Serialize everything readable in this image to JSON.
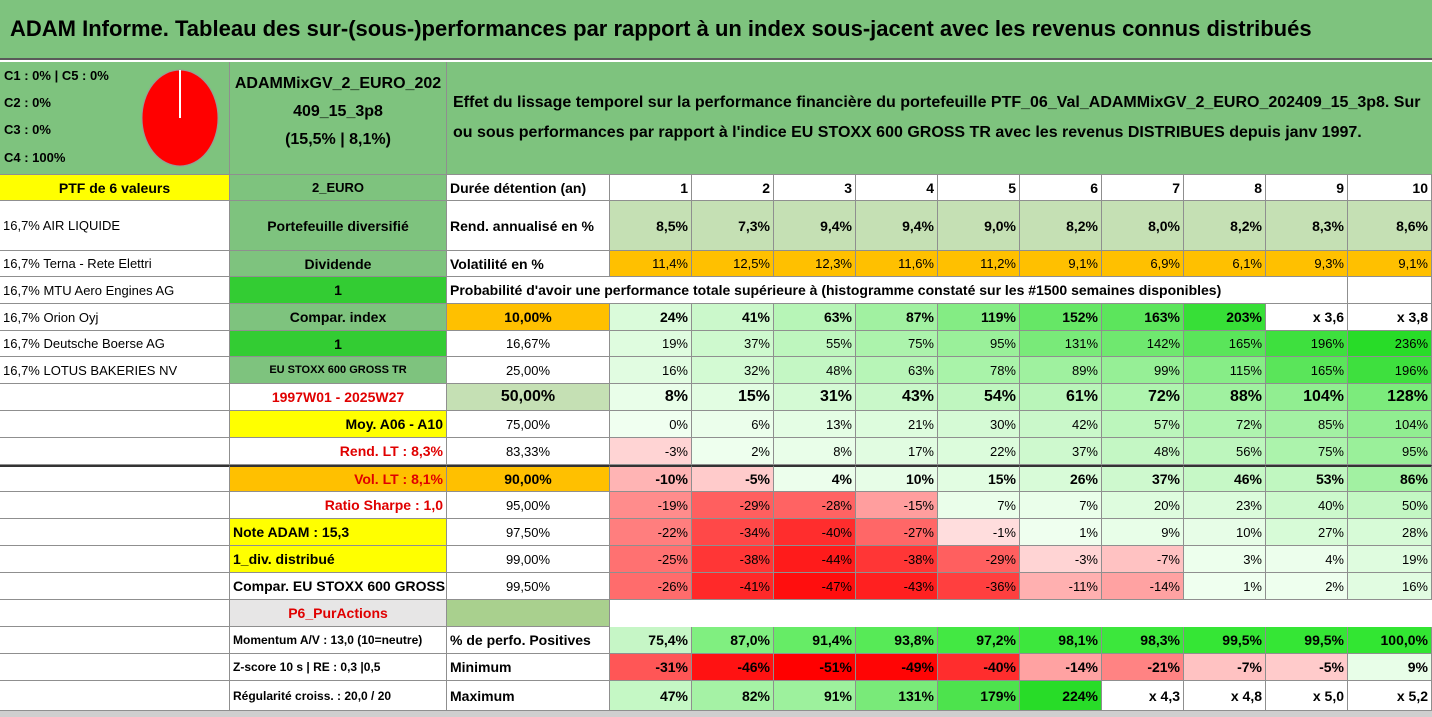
{
  "title": "ADAM Informe. Tableau des sur-(sous-)performances par rapport à un index sous-jacent avec les revenus connus distribués",
  "composition": [
    "C1 : 0% | C5 : 0%",
    "C2 : 0%",
    "C3 : 0%",
    "C4 : 100%"
  ],
  "portfolio_name": [
    "ADAMMixGV_2_EURO_202",
    "409_15_3p8",
    "(15,5% | 8,1%)"
  ],
  "description": [
    "Effet du lissage temporel sur la performance financière du portefeuille PTF_06_Val_ADAMMixGV_2_EURO_202409_15_3p8. Sur",
    "ou sous performances par rapport à l'indice EU STOXX 600 GROSS TR avec les revenus DISTRIBUES depuis janv 1997."
  ],
  "holdings_header": "PTF de 6 valeurs",
  "holdings": [
    "16,7% AIR LIQUIDE",
    "16,7% Terna - Rete Elettri",
    "16,7% MTU Aero Engines AG",
    "16,7% Orion Oyj",
    "16,7% Deutsche Boerse AG",
    "16,7% LOTUS BAKERIES NV"
  ],
  "side_labels": [
    "2_EURO",
    "Portefeuille diversifié",
    "Dividende",
    "1",
    "Compar. index",
    "1",
    "EU STOXX 600 GROSS TR",
    "1997W01 - 2025W27",
    "Moy. A06 - A10",
    "Rend. LT : 8,3%",
    "Vol. LT : 8,1%",
    "Ratio Sharpe : 1,0"
  ],
  "notes": [
    "Note ADAM : 15,3",
    "1_div. distribué",
    "Compar. EU STOXX 600 GROSS TR",
    "P6_PurActions"
  ],
  "stats_labels": [
    "Momentum A/V : 13,0 (10=neutre)",
    "Z-score 10 s | RE : 0,3 |0,5",
    "Régularité croiss. : 20,0 / 20"
  ],
  "duration_label": "Durée détention (an)",
  "years": [
    "1",
    "2",
    "3",
    "4",
    "5",
    "6",
    "7",
    "8",
    "9",
    "10"
  ],
  "return_label": "Rend. annualisé en %",
  "returns": [
    "8,5%",
    "7,3%",
    "9,4%",
    "9,4%",
    "9,0%",
    "8,2%",
    "8,0%",
    "8,2%",
    "8,3%",
    "8,6%"
  ],
  "volatility_label": "Volatilité en %",
  "volatilities": [
    "11,4%",
    "12,5%",
    "12,3%",
    "11,6%",
    "11,2%",
    "9,1%",
    "6,9%",
    "6,1%",
    "9,3%",
    "9,1%"
  ],
  "probability_header": "Probabilité d'avoir une performance totale supérieure à (histogramme constaté sur les #1500 semaines disponibles)",
  "probability_rows": [
    {
      "p": "10,00%",
      "v": [
        "24%",
        "41%",
        "63%",
        "87%",
        "119%",
        "152%",
        "163%",
        "203%",
        "x 3,6",
        "x 3,8"
      ]
    },
    {
      "p": "16,67%",
      "v": [
        "19%",
        "37%",
        "55%",
        "75%",
        "95%",
        "131%",
        "142%",
        "165%",
        "196%",
        "236%"
      ]
    },
    {
      "p": "25,00%",
      "v": [
        "16%",
        "32%",
        "48%",
        "63%",
        "78%",
        "89%",
        "99%",
        "115%",
        "165%",
        "196%"
      ]
    },
    {
      "p": "50,00%",
      "v": [
        "8%",
        "15%",
        "31%",
        "43%",
        "54%",
        "61%",
        "72%",
        "88%",
        "104%",
        "128%"
      ]
    },
    {
      "p": "75,00%",
      "v": [
        "0%",
        "6%",
        "13%",
        "21%",
        "30%",
        "42%",
        "57%",
        "72%",
        "85%",
        "104%"
      ]
    },
    {
      "p": "83,33%",
      "v": [
        "-3%",
        "2%",
        "8%",
        "17%",
        "22%",
        "37%",
        "48%",
        "56%",
        "75%",
        "95%"
      ]
    },
    {
      "p": "90,00%",
      "v": [
        "-10%",
        "-5%",
        "4%",
        "10%",
        "15%",
        "26%",
        "37%",
        "46%",
        "53%",
        "86%"
      ]
    },
    {
      "p": "95,00%",
      "v": [
        "-19%",
        "-29%",
        "-28%",
        "-15%",
        "7%",
        "7%",
        "20%",
        "23%",
        "40%",
        "50%"
      ]
    },
    {
      "p": "97,50%",
      "v": [
        "-22%",
        "-34%",
        "-40%",
        "-27%",
        "-1%",
        "1%",
        "9%",
        "10%",
        "27%",
        "28%"
      ]
    },
    {
      "p": "99,00%",
      "v": [
        "-25%",
        "-38%",
        "-44%",
        "-38%",
        "-29%",
        "-3%",
        "-7%",
        "3%",
        "4%",
        "19%"
      ]
    },
    {
      "p": "99,50%",
      "v": [
        "-26%",
        "-41%",
        "-47%",
        "-43%",
        "-36%",
        "-11%",
        "-14%",
        "1%",
        "2%",
        "16%"
      ]
    }
  ],
  "positive_label": "% de perfo. Positives",
  "positives": [
    "75,4%",
    "87,0%",
    "91,4%",
    "93,8%",
    "97,2%",
    "98,1%",
    "98,3%",
    "99,5%",
    "99,5%",
    "100,0%"
  ],
  "min_label": "Minimum",
  "minimums": [
    "-31%",
    "-46%",
    "-51%",
    "-49%",
    "-40%",
    "-14%",
    "-21%",
    "-7%",
    "-5%",
    "9%"
  ],
  "max_label": "Maximum",
  "maximums": [
    "47%",
    "82%",
    "91%",
    "131%",
    "179%",
    "224%",
    "x 4,3",
    "x 4,8",
    "x 5,0",
    "x 5,2"
  ],
  "colors": {
    "header_green": "#7ec37e",
    "yellow": "#ffff00",
    "orange": "#ffc000",
    "bright_green": "#33cc33",
    "light_green": "#c5e0b4",
    "dark_red": "#e60000",
    "red_text": "#e00000"
  }
}
